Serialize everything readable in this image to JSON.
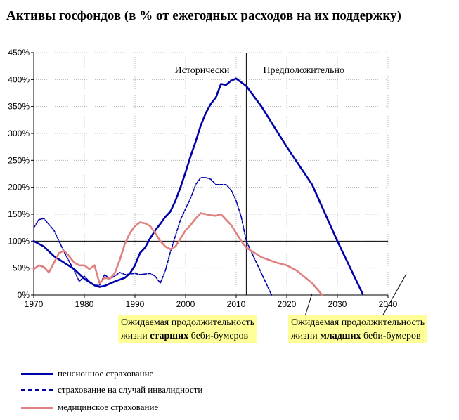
{
  "chart_data": {
    "type": "line",
    "title": "Активы госфондов (в % от ежегодных расходов на их поддержку)",
    "xlabel": "",
    "ylabel": "",
    "xlim": [
      1970,
      2040
    ],
    "ylim": [
      0,
      450
    ],
    "x_ticks": [
      1970,
      1980,
      1990,
      2000,
      2010,
      2020,
      2030,
      2040
    ],
    "y_ticks": [
      0,
      50,
      100,
      150,
      200,
      250,
      300,
      350,
      400,
      450
    ],
    "y_tick_labels": [
      "0%",
      "50%",
      "100%",
      "150%",
      "200%",
      "250%",
      "300%",
      "350%",
      "400%",
      "450%"
    ],
    "grid": "dotted",
    "reference_line_y": 100,
    "divider_x": 2012,
    "region_labels": [
      "Исторически",
      "Предположительно"
    ],
    "annotations": [
      {
        "x": 2025,
        "parts": [
          [
            "Ожидаемая продолжительность",
            false
          ],
          [
            "жизни ",
            false
          ],
          [
            "старших",
            true
          ],
          [
            " беби-бумеров",
            false
          ]
        ]
      },
      {
        "x": 2040,
        "parts": [
          [
            "Ожидаемая продолжительность",
            false
          ],
          [
            "жизни ",
            false
          ],
          [
            "младших",
            true
          ],
          [
            " беби-бумеров",
            false
          ]
        ]
      }
    ],
    "series": [
      {
        "name": "пенсионное страхование",
        "color": "#0000aa",
        "style": "solid",
        "points": [
          [
            1970,
            100
          ],
          [
            1972,
            90
          ],
          [
            1974,
            72
          ],
          [
            1976,
            60
          ],
          [
            1978,
            48
          ],
          [
            1980,
            30
          ],
          [
            1982,
            18
          ],
          [
            1983,
            15
          ],
          [
            1984,
            17
          ],
          [
            1986,
            25
          ],
          [
            1988,
            32
          ],
          [
            1989,
            40
          ],
          [
            1990,
            55
          ],
          [
            1991,
            78
          ],
          [
            1992,
            88
          ],
          [
            1993,
            105
          ],
          [
            1994,
            120
          ],
          [
            1995,
            132
          ],
          [
            1996,
            145
          ],
          [
            1997,
            155
          ],
          [
            1998,
            175
          ],
          [
            1999,
            200
          ],
          [
            2000,
            228
          ],
          [
            2001,
            258
          ],
          [
            2002,
            285
          ],
          [
            2003,
            315
          ],
          [
            2004,
            338
          ],
          [
            2005,
            355
          ],
          [
            2006,
            367
          ],
          [
            2007,
            392
          ],
          [
            2008,
            390
          ],
          [
            2009,
            398
          ],
          [
            2010,
            402
          ],
          [
            2011,
            395
          ],
          [
            2012,
            388
          ],
          [
            2015,
            350
          ],
          [
            2020,
            275
          ],
          [
            2025,
            205
          ],
          [
            2030,
            100
          ],
          [
            2035,
            2
          ]
        ]
      },
      {
        "name": "страхование на случай инвалидности",
        "color": "#0000aa",
        "style": "dashed",
        "points": [
          [
            1970,
            125
          ],
          [
            1971,
            140
          ],
          [
            1972,
            142
          ],
          [
            1974,
            120
          ],
          [
            1976,
            80
          ],
          [
            1978,
            45
          ],
          [
            1979,
            25
          ],
          [
            1980,
            35
          ],
          [
            1981,
            25
          ],
          [
            1982,
            18
          ],
          [
            1983,
            18
          ],
          [
            1984,
            38
          ],
          [
            1985,
            30
          ],
          [
            1986,
            35
          ],
          [
            1987,
            42
          ],
          [
            1988,
            38
          ],
          [
            1990,
            40
          ],
          [
            1991,
            38
          ],
          [
            1993,
            40
          ],
          [
            1994,
            35
          ],
          [
            1995,
            22
          ],
          [
            1996,
            45
          ],
          [
            1997,
            80
          ],
          [
            1998,
            110
          ],
          [
            1999,
            140
          ],
          [
            2000,
            160
          ],
          [
            2001,
            180
          ],
          [
            2002,
            205
          ],
          [
            2003,
            218
          ],
          [
            2004,
            218
          ],
          [
            2005,
            215
          ],
          [
            2006,
            205
          ],
          [
            2008,
            205
          ],
          [
            2009,
            195
          ],
          [
            2010,
            175
          ],
          [
            2011,
            145
          ],
          [
            2012,
            100
          ],
          [
            2013,
            80
          ],
          [
            2015,
            40
          ],
          [
            2017,
            0
          ]
        ]
      },
      {
        "name": "медицинское страхование",
        "color": "#e08080",
        "style": "solid",
        "points": [
          [
            1970,
            48
          ],
          [
            1971,
            55
          ],
          [
            1972,
            52
          ],
          [
            1973,
            42
          ],
          [
            1974,
            60
          ],
          [
            1975,
            78
          ],
          [
            1976,
            82
          ],
          [
            1977,
            72
          ],
          [
            1978,
            60
          ],
          [
            1979,
            55
          ],
          [
            1980,
            55
          ],
          [
            1981,
            48
          ],
          [
            1982,
            55
          ],
          [
            1983,
            22
          ],
          [
            1984,
            32
          ],
          [
            1985,
            30
          ],
          [
            1986,
            40
          ],
          [
            1987,
            65
          ],
          [
            1988,
            95
          ],
          [
            1989,
            115
          ],
          [
            1990,
            128
          ],
          [
            1991,
            135
          ],
          [
            1992,
            133
          ],
          [
            1993,
            128
          ],
          [
            1994,
            115
          ],
          [
            1995,
            100
          ],
          [
            1996,
            90
          ],
          [
            1997,
            85
          ],
          [
            1998,
            90
          ],
          [
            1999,
            105
          ],
          [
            2000,
            120
          ],
          [
            2001,
            130
          ],
          [
            2002,
            142
          ],
          [
            2003,
            152
          ],
          [
            2004,
            150
          ],
          [
            2005,
            148
          ],
          [
            2006,
            147
          ],
          [
            2007,
            150
          ],
          [
            2008,
            140
          ],
          [
            2009,
            130
          ],
          [
            2010,
            115
          ],
          [
            2011,
            100
          ],
          [
            2012,
            88
          ],
          [
            2013,
            82
          ],
          [
            2015,
            70
          ],
          [
            2018,
            60
          ],
          [
            2020,
            55
          ],
          [
            2022,
            45
          ],
          [
            2025,
            22
          ],
          [
            2027,
            0
          ]
        ]
      }
    ]
  }
}
